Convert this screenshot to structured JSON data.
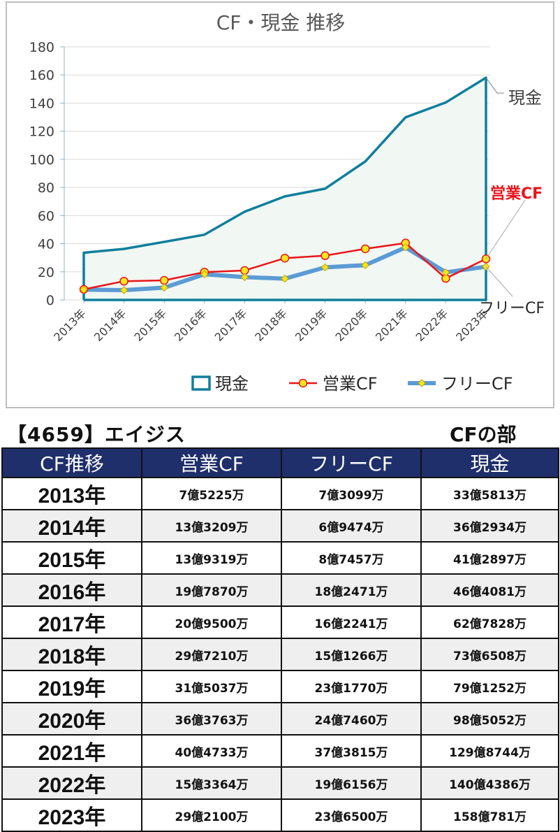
{
  "chart_data": {
    "type": "line",
    "title": "CF・現金 推移",
    "categories": [
      "2013年",
      "2014年",
      "2015年",
      "2016年",
      "2017年",
      "2018年",
      "2019年",
      "2020年",
      "2021年",
      "2022年",
      "2023年"
    ],
    "ylim": [
      0,
      180
    ],
    "yticks": [
      "0",
      "20",
      "40",
      "60",
      "80",
      "100",
      "120",
      "140",
      "160",
      "180"
    ],
    "series": [
      {
        "name": "現金",
        "values": [
          33.58,
          36.29,
          41.29,
          46.41,
          62.78,
          73.65,
          79.13,
          98.51,
          129.87,
          140.44,
          158.08
        ],
        "color": "#0f7f9c",
        "fill": "#f1f7f3",
        "style": "area"
      },
      {
        "name": "営業CF",
        "values": [
          7.52,
          13.32,
          13.93,
          19.79,
          20.95,
          29.72,
          31.5,
          36.38,
          40.47,
          15.34,
          29.21
        ],
        "color": "#e8141b",
        "marker": "#f5e61e",
        "style": "line-marker"
      },
      {
        "name": "フリーCF",
        "values": [
          7.31,
          6.95,
          8.75,
          18.25,
          16.22,
          15.13,
          23.18,
          24.75,
          37.38,
          19.62,
          23.65
        ],
        "color": "#5b9bd5",
        "marker": "#f5e61e",
        "style": "thick-line-diamond"
      }
    ],
    "labels": {
      "cash": "現金",
      "operating": "営業CF",
      "free": "フリーCF"
    },
    "legend": [
      "現金",
      "営業CF",
      "フリーCF"
    ],
    "legend_position": "bottom",
    "grid": true
  },
  "heading": {
    "company": "【4659】エイジス",
    "section": "CFの部"
  },
  "table": {
    "headers": [
      "CF推移",
      "営業CF",
      "フリーCF",
      "現金"
    ],
    "rows": [
      [
        "2013年",
        "7億5225万",
        "7億3099万",
        "33億5813万"
      ],
      [
        "2014年",
        "13億3209万",
        "6億9474万",
        "36億2934万"
      ],
      [
        "2015年",
        "13億9319万",
        "8億7457万",
        "41億2897万"
      ],
      [
        "2016年",
        "19億7870万",
        "18億2471万",
        "46億4081万"
      ],
      [
        "2017年",
        "20億9500万",
        "16億2241万",
        "62億7828万"
      ],
      [
        "2018年",
        "29億7210万",
        "15億1266万",
        "73億6508万"
      ],
      [
        "2019年",
        "31億5037万",
        "23億1770万",
        "79億1252万"
      ],
      [
        "2020年",
        "36億3763万",
        "24億7460万",
        "98億5052万"
      ],
      [
        "2021年",
        "40億4733万",
        "37億3815万",
        "129億8744万"
      ],
      [
        "2022年",
        "15億3364万",
        "19億6156万",
        "140億4386万"
      ],
      [
        "2023年",
        "29億2100万",
        "23億6500万",
        "158億781万"
      ]
    ]
  }
}
